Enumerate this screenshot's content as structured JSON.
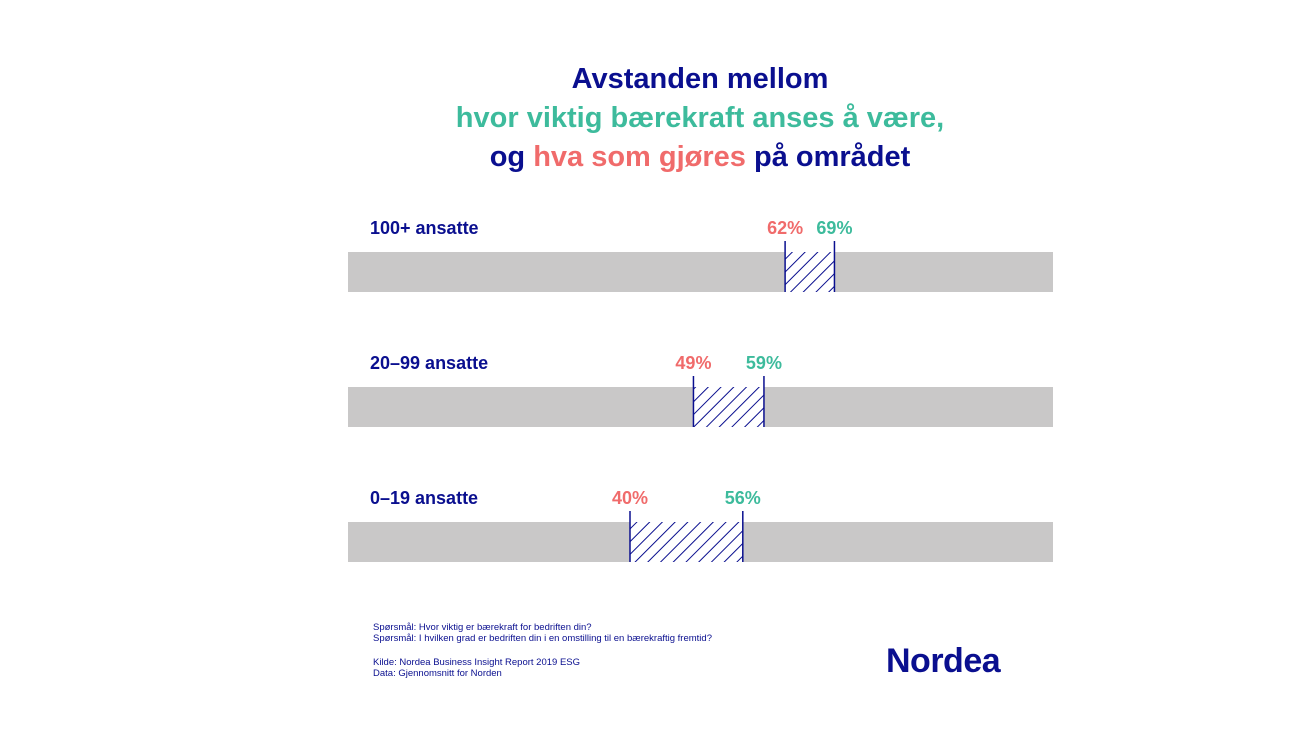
{
  "title": {
    "line1": "Avstanden mellom",
    "line2": "hvor viktig bærekraft anses å være,",
    "line3_part1": "og ",
    "line3_part2": "hva som gjøres",
    "line3_part3": " på området"
  },
  "chart_data": {
    "type": "bar",
    "xlim": [
      0,
      100
    ],
    "categories": [
      "100+ ansatte",
      "20–99 ansatte",
      "0–19 ansatte"
    ],
    "series": [
      {
        "values": [
          62,
          49,
          40
        ],
        "labels": [
          "62%",
          "49%",
          "40%"
        ],
        "color": "#f06b6b"
      },
      {
        "values": [
          69,
          59,
          56
        ],
        "labels": [
          "69%",
          "59%",
          "56%"
        ],
        "color": "#3dbb9c"
      }
    ],
    "track_color": "#c9c8c8",
    "gap_color": "#0a0f8f"
  },
  "footer": {
    "question1": "Spørsmål: Hvor viktig er bærekraft for bedriften din?",
    "question2": "Spørsmål: I hvilken grad er bedriften din i en omstilling til en bærekraftig fremtid?",
    "source": "Kilde: Nordea Business Insight Report 2019 ESG",
    "data_note": "Data: Gjennomsnitt for Norden"
  },
  "logo": "Nordea",
  "colors": {
    "navy": "#0a0f8f",
    "teal": "#3dbb9c",
    "coral": "#f06b6b",
    "grey": "#c9c8c8"
  }
}
